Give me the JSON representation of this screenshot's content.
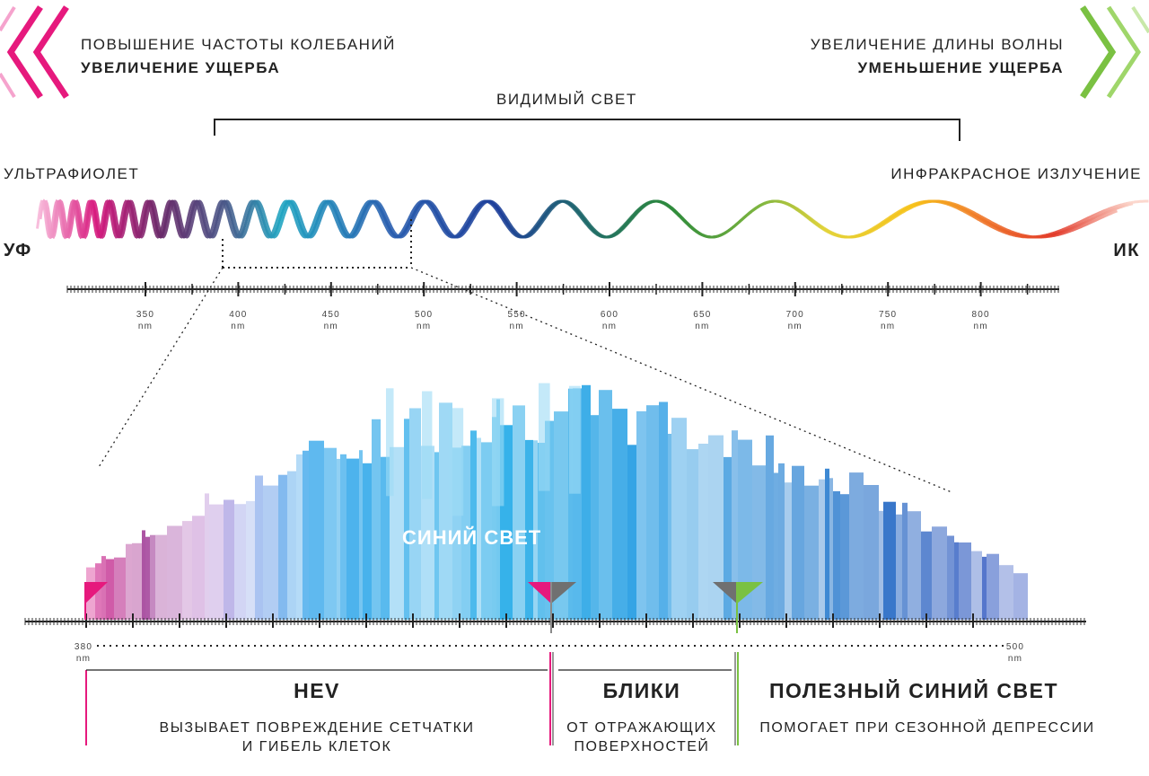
{
  "top_left": {
    "line1": "ПОВЫШЕНИЕ ЧАСТОТЫ КОЛЕБАНИЙ",
    "line2": "УВЕЛИЧЕНИЕ УЩЕРБА",
    "chevron_color": "#e6197d",
    "chevron_icon": "double-chevron-left-icon"
  },
  "top_right": {
    "line1": "УВЕЛИЧЕНИЕ ДЛИНЫ ВОЛНЫ",
    "line2": "УМЕНЬШЕНИЕ УЩЕРБА",
    "chevron_color": "#7ac142",
    "chevron_icon": "double-chevron-right-icon"
  },
  "visible_light_label": "ВИДИМЫЙ СВЕТ",
  "ultraviolet_label": "УЛЬТРАФИОЛЕТ",
  "infrared_label": "ИНФРАКРАСНОЕ ИЗЛУЧЕНИЕ",
  "uv_abbr": "УФ",
  "ir_abbr": "ИК",
  "spectrum_scale": {
    "unit": "nm",
    "ticks": [
      "350",
      "400",
      "450",
      "500",
      "550",
      "600",
      "650",
      "700",
      "750",
      "800"
    ]
  },
  "blue_light_label": "СИНИЙ СВЕТ",
  "zoom_scale": {
    "start": "380",
    "end": "500",
    "unit": "nm"
  },
  "sections": [
    {
      "title": "HEV",
      "desc1": "ВЫЗЫВАЕТ ПОВРЕЖДЕНИЕ СЕТЧАТКИ",
      "desc2": "И ГИБЕЛЬ КЛЕТОК",
      "color": "#e6197d"
    },
    {
      "title": "БЛИКИ",
      "desc1": "ОТ ОТРАЖАЮЩИХ",
      "desc2": "ПОВЕРХНОСТЕЙ",
      "color": "#888888"
    },
    {
      "title": "ПОЛЕЗНЫЙ СИНИЙ СВЕТ",
      "desc1": "ПОМОГАЕТ ПРИ СЕЗОННОЙ ДЕПРЕССИИ",
      "desc2": "",
      "color": "#7ac142"
    }
  ]
}
